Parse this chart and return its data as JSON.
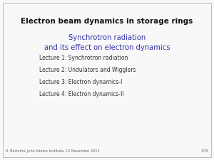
{
  "title": "Electron beam dynamics in storage rings",
  "subtitle_line1": "Synchrotron radiation",
  "subtitle_line2": "and its effect on electron dynamics",
  "lectures": [
    "Lecture 1: Synchrotron radiation",
    "Lecture 2: Undulators and Wigglers",
    "Lecture 3: Electron dynamics-I",
    "Lecture 4: Electron dynamics-II"
  ],
  "footer_left": "R. Bartolini, John Adams Institute, 12 November 2015",
  "footer_right": "1/35",
  "bg_color": "#f8f8f8",
  "title_color": "#111111",
  "subtitle_color": "#3333aa",
  "lecture_color": "#333333",
  "footer_color": "#666666",
  "border_color": "#bbbbbb",
  "title_fontsize": 7.5,
  "subtitle_fontsize": 7.2,
  "lecture_fontsize": 5.5,
  "footer_fontsize": 3.5
}
